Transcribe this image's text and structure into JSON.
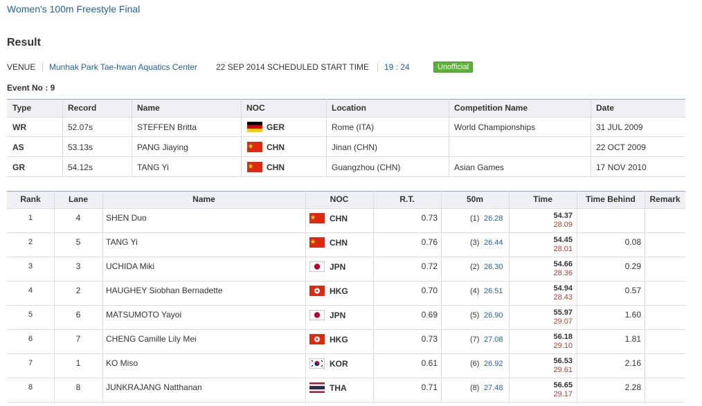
{
  "header": {
    "title": "Women's 100m Freestyle Final",
    "heading": "Result"
  },
  "venue": {
    "label": "VENUE",
    "name": "Munhak Park Tae-hwan Aquatics Center",
    "schedule": "22 SEP 2014 SCHEDULED START TIME",
    "time": "19 : 24",
    "status": "Unofficial"
  },
  "event": "Event No : 9",
  "records": {
    "columns": [
      "Type",
      "Record",
      "Name",
      "NOC",
      "Location",
      "Competition Name",
      "Date"
    ],
    "rows": [
      {
        "type": "WR",
        "record": "52.07s",
        "name": "STEFFEN Britta",
        "noc": "GER",
        "location": "Rome (ITA)",
        "competition": "World Championships",
        "date": "31 JUL 2009"
      },
      {
        "type": "AS",
        "record": "53.13s",
        "name": "PANG Jiaying",
        "noc": "CHN",
        "location": "Jinan (CHN)",
        "date": "22 OCT 2009"
      },
      {
        "type": "GR",
        "record": "54.12s",
        "name": "TANG Yi",
        "noc": "CHN",
        "location": "Guangzhou (CHN)",
        "competition": "Asian Games",
        "date": "17 NOV 2010"
      }
    ]
  },
  "results": {
    "columns": [
      "Rank",
      "Lane",
      "Name",
      "NOC",
      "R.T.",
      "50m",
      "Time",
      "Time Behind",
      "Remark"
    ],
    "rows": [
      {
        "rank": "1",
        "lane": "4",
        "name": "SHEN Duo",
        "noc": "CHN",
        "rt": "0.73",
        "split_rank": "(1)",
        "split": "26.28",
        "time": "54.37",
        "second_half": "28.09"
      },
      {
        "rank": "2",
        "lane": "5",
        "name": "TANG Yi",
        "noc": "CHN",
        "rt": "0.76",
        "split_rank": "(3)",
        "split": "26.44",
        "time": "54.45",
        "second_half": "28.01",
        "behind": "0.08"
      },
      {
        "rank": "3",
        "lane": "3",
        "name": "UCHIDA Miki",
        "noc": "JPN",
        "rt": "0.72",
        "split_rank": "(2)",
        "split": "26.30",
        "time": "54.66",
        "second_half": "28.36",
        "behind": "0.29"
      },
      {
        "rank": "4",
        "lane": "2",
        "name": "HAUGHEY Siobhan Bernadette",
        "noc": "HKG",
        "rt": "0.70",
        "split_rank": "(4)",
        "split": "26.51",
        "time": "54.94",
        "second_half": "28.43",
        "behind": "0.57"
      },
      {
        "rank": "5",
        "lane": "6",
        "name": "MATSUMOTO Yayoi",
        "noc": "JPN",
        "rt": "0.69",
        "split_rank": "(5)",
        "split": "26.90",
        "time": "55.97",
        "second_half": "29.07",
        "behind": "1.60"
      },
      {
        "rank": "6",
        "lane": "7",
        "name": "CHENG Camille Lily Mei",
        "noc": "HKG",
        "rt": "0.73",
        "split_rank": "(7)",
        "split": "27.08",
        "time": "56.18",
        "second_half": "29.10",
        "behind": "1.81"
      },
      {
        "rank": "7",
        "lane": "1",
        "name": "KO Miso",
        "noc": "KOR",
        "rt": "0.61",
        "split_rank": "(6)",
        "split": "26.92",
        "time": "56.53",
        "second_half": "29.61",
        "behind": "2.16"
      },
      {
        "rank": "8",
        "lane": "8",
        "name": "JUNKRAJANG Natthanan",
        "noc": "THA",
        "rt": "0.71",
        "split_rank": "(8)",
        "split": "27.48",
        "time": "56.65",
        "second_half": "29.17",
        "behind": "2.28"
      }
    ]
  }
}
